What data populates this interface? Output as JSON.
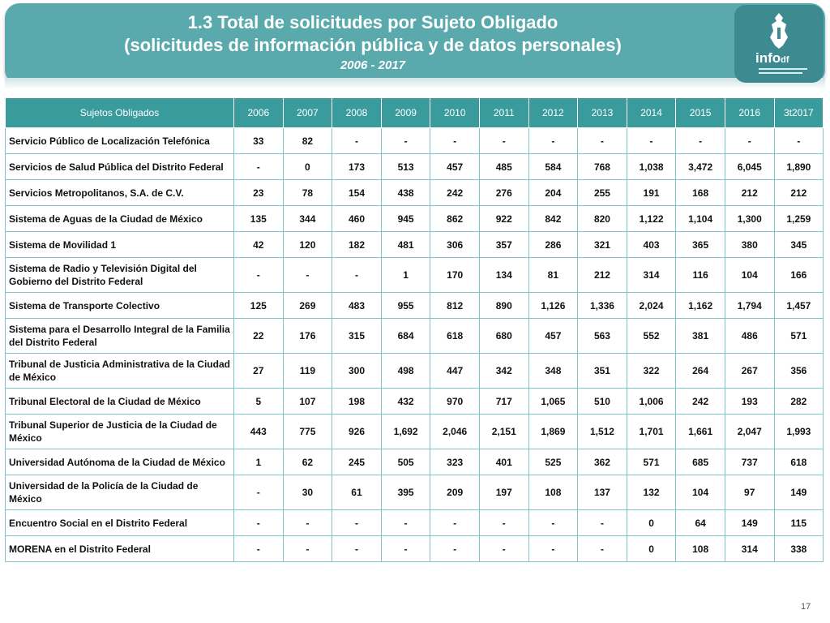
{
  "header": {
    "title_line1": "1.3 Total de solicitudes por Sujeto Obligado",
    "title_line2": "(solicitudes de información pública y de datos personales)",
    "period": "2006 - 2017"
  },
  "logo": {
    "text": "info",
    "text_suffix": "df",
    "icon": "city-emblem-icon"
  },
  "table": {
    "columns": [
      "Sujetos Obligados",
      "2006",
      "2007",
      "2008",
      "2009",
      "2010",
      "2011",
      "2012",
      "2013",
      "2014",
      "2015",
      "2016",
      "3t2017"
    ],
    "rows": [
      {
        "name": "Servicio Público de Localización Telefónica",
        "values": [
          "33",
          "82",
          "-",
          "-",
          "-",
          "-",
          "-",
          "-",
          "-",
          "-",
          "-",
          "-"
        ]
      },
      {
        "name": "Servicios de Salud Pública del Distrito Federal",
        "values": [
          "-",
          "0",
          "173",
          "513",
          "457",
          "485",
          "584",
          "768",
          "1,038",
          "3,472",
          "6,045",
          "1,890"
        ]
      },
      {
        "name": "Servicios Metropolitanos, S.A. de C.V.",
        "values": [
          "23",
          "78",
          "154",
          "438",
          "242",
          "276",
          "204",
          "255",
          "191",
          "168",
          "212",
          "212"
        ]
      },
      {
        "name": "Sistema de Aguas de la Ciudad de México",
        "values": [
          "135",
          "344",
          "460",
          "945",
          "862",
          "922",
          "842",
          "820",
          "1,122",
          "1,104",
          "1,300",
          "1,259"
        ]
      },
      {
        "name": "Sistema de Movilidad 1",
        "values": [
          "42",
          "120",
          "182",
          "481",
          "306",
          "357",
          "286",
          "321",
          "403",
          "365",
          "380",
          "345"
        ]
      },
      {
        "name": "Sistema de Radio y Televisión Digital del Gobierno del Distrito Federal",
        "values": [
          "-",
          "-",
          "-",
          "1",
          "170",
          "134",
          "81",
          "212",
          "314",
          "116",
          "104",
          "166"
        ]
      },
      {
        "name": "Sistema de Transporte Colectivo",
        "values": [
          "125",
          "269",
          "483",
          "955",
          "812",
          "890",
          "1,126",
          "1,336",
          "2,024",
          "1,162",
          "1,794",
          "1,457"
        ]
      },
      {
        "name": "Sistema para el Desarrollo Integral de la Familia del Distrito Federal",
        "values": [
          "22",
          "176",
          "315",
          "684",
          "618",
          "680",
          "457",
          "563",
          "552",
          "381",
          "486",
          "571"
        ]
      },
      {
        "name": "Tribunal de Justicia Administrativa de la Ciudad de México",
        "values": [
          "27",
          "119",
          "300",
          "498",
          "447",
          "342",
          "348",
          "351",
          "322",
          "264",
          "267",
          "356"
        ]
      },
      {
        "name": "Tribunal Electoral de la Ciudad de México",
        "values": [
          "5",
          "107",
          "198",
          "432",
          "970",
          "717",
          "1,065",
          "510",
          "1,006",
          "242",
          "193",
          "282"
        ]
      },
      {
        "name": "Tribunal Superior de Justicia de la Ciudad de México",
        "values": [
          "443",
          "775",
          "926",
          "1,692",
          "2,046",
          "2,151",
          "1,869",
          "1,512",
          "1,701",
          "1,661",
          "2,047",
          "1,993"
        ]
      },
      {
        "name": "Universidad Autónoma de la Ciudad de México",
        "values": [
          "1",
          "62",
          "245",
          "505",
          "323",
          "401",
          "525",
          "362",
          "571",
          "685",
          "737",
          "618"
        ]
      },
      {
        "name": "Universidad de la Policía de la Ciudad de México",
        "values": [
          "-",
          "30",
          "61",
          "395",
          "209",
          "197",
          "108",
          "137",
          "132",
          "104",
          "97",
          "149"
        ]
      },
      {
        "name": "Encuentro Social en el Distrito Federal",
        "values": [
          "-",
          "-",
          "-",
          "-",
          "-",
          "-",
          "-",
          "-",
          "0",
          "64",
          "149",
          "115"
        ]
      },
      {
        "name": "MORENA en el Distrito Federal",
        "values": [
          "-",
          "-",
          "-",
          "-",
          "-",
          "-",
          "-",
          "-",
          "0",
          "108",
          "314",
          "338"
        ]
      }
    ]
  },
  "footer": {
    "page_number": "17"
  }
}
